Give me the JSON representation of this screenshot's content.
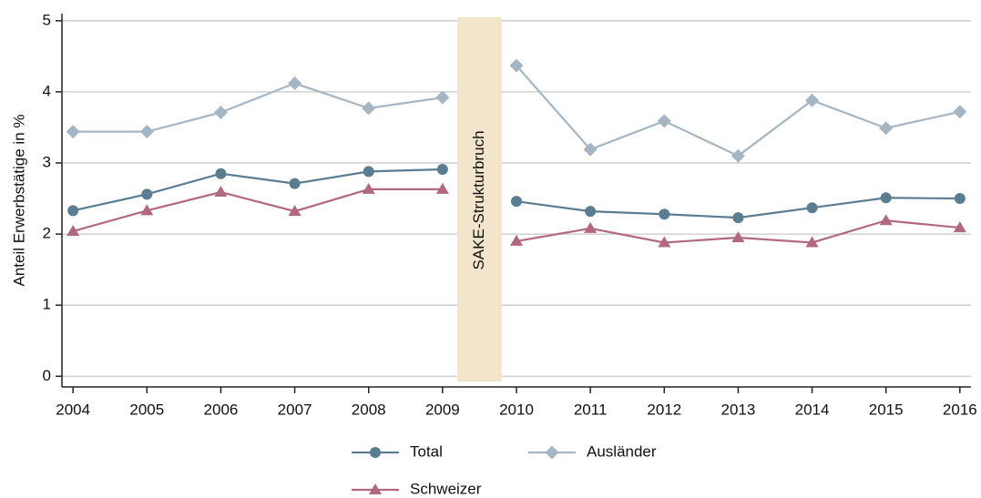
{
  "chart_data": {
    "type": "line",
    "y_label": "Anteil Erwerbstätige in %",
    "x": [
      2004,
      2005,
      2006,
      2007,
      2008,
      2009,
      2010,
      2011,
      2012,
      2013,
      2014,
      2015,
      2016
    ],
    "series": [
      {
        "name": "Total",
        "color": "#5b7d92",
        "marker": "circle",
        "values": [
          2.33,
          2.56,
          2.85,
          2.71,
          2.88,
          2.91,
          2.46,
          2.32,
          2.28,
          2.23,
          2.37,
          2.51,
          2.5
        ]
      },
      {
        "name": "Ausländer",
        "color": "#a4b6c4",
        "marker": "diamond",
        "values": [
          3.44,
          3.44,
          3.71,
          4.12,
          3.77,
          3.92,
          4.37,
          3.19,
          3.59,
          3.1,
          3.88,
          3.49,
          3.72
        ]
      },
      {
        "name": "Schweizer",
        "color": "#b2697f",
        "marker": "triangle",
        "values": [
          2.04,
          2.33,
          2.59,
          2.32,
          2.63,
          2.63,
          1.9,
          2.08,
          1.88,
          1.95,
          1.88,
          2.19,
          2.09
        ]
      }
    ],
    "annotation_band": {
      "label": "SAKE-Strukturbruch",
      "x": [
        2009.2,
        2009.8
      ],
      "color": "#f2e5cc"
    },
    "xlim": [
      2003.85,
      2016.15
    ],
    "xticks": [
      2004,
      2005,
      2006,
      2007,
      2008,
      2009,
      2010,
      2011,
      2012,
      2013,
      2014,
      2015,
      2016
    ],
    "ylim": [
      -0.15,
      5.1
    ],
    "yticks": [
      0,
      1,
      2,
      3,
      4,
      5
    ],
    "grid": true,
    "legend": "bottom"
  }
}
